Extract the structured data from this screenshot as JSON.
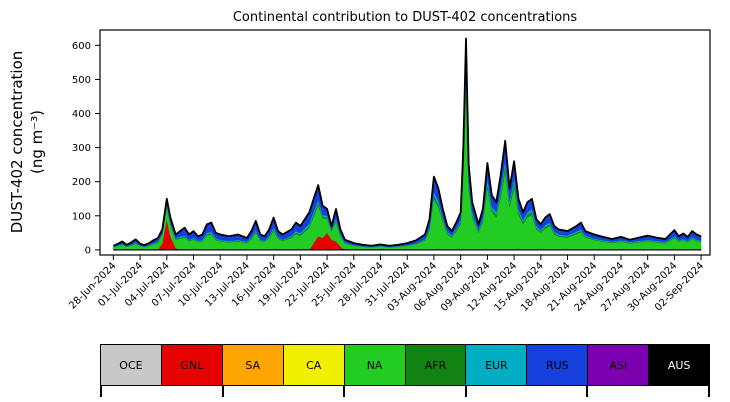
{
  "labels": {
    "ylabel_line1": "DUST-402 concentration",
    "ylabel_line2": "(ng m⁻³)"
  },
  "chart_data": {
    "type": "area",
    "stacked": true,
    "title": "Continental contribution to DUST-402 concentrations",
    "xlabel": "",
    "ylabel": "DUST-402 concentration (ng m⁻³)",
    "legend_position": "bottom-table",
    "grid": false,
    "xlim": [
      -1.5,
      67
    ],
    "ylim": [
      -15,
      645
    ],
    "yticks": [
      0,
      100,
      200,
      300,
      400,
      500,
      600
    ],
    "x_unit": "days since 28-Jun-2024",
    "x_tick_positions": [
      0,
      3,
      6,
      9,
      12,
      15,
      18,
      21,
      24,
      27,
      30,
      33,
      36,
      39,
      42,
      45,
      48,
      51,
      54,
      57,
      60,
      63,
      66
    ],
    "x_tick_labels": [
      "28-Jun-2024",
      "01-Jul-2024",
      "04-Jul-2024",
      "07-Jul-2024",
      "10-Jul-2024",
      "13-Jul-2024",
      "16-Jul-2024",
      "19-Jul-2024",
      "22-Jul-2024",
      "25-Jul-2024",
      "28-Jul-2024",
      "31-Jul-2024",
      "03-Aug-2024",
      "06-Aug-2024",
      "09-Aug-2024",
      "12-Aug-2024",
      "15-Aug-2024",
      "18-Aug-2024",
      "21-Aug-2024",
      "24-Aug-2024",
      "27-Aug-2024",
      "30-Aug-2024",
      "02-Sep-2024"
    ],
    "x": [
      0,
      0.5,
      1,
      1.5,
      2,
      2.5,
      3,
      3.5,
      4,
      4.5,
      5,
      5.5,
      6,
      6.4,
      7,
      7.5,
      8,
      8.5,
      9,
      9.5,
      10,
      10.5,
      11,
      11.5,
      12,
      13,
      14,
      15,
      15.5,
      16,
      16.5,
      17,
      17.5,
      18,
      18.5,
      19,
      20,
      20.5,
      21,
      21.5,
      22,
      22.5,
      23,
      23.5,
      24,
      24.5,
      25,
      25.5,
      26,
      27,
      28,
      29,
      30,
      31,
      32,
      33,
      34,
      35,
      35.5,
      36,
      36.5,
      37,
      37.5,
      38,
      38.5,
      39,
      39.3,
      39.6,
      39.9,
      40.3,
      41,
      41.5,
      42,
      42.5,
      43,
      43.5,
      44,
      44.5,
      45,
      45.5,
      46,
      46.5,
      47,
      47.5,
      48,
      48.5,
      49,
      49.5,
      50,
      51,
      52,
      52.5,
      53,
      54,
      55,
      56,
      57,
      58,
      59,
      60,
      61,
      62,
      62.5,
      63,
      63.5,
      64,
      64.5,
      65,
      65.5,
      66
    ],
    "series": [
      {
        "name": "GNL",
        "color": "#e60000",
        "values": [
          0,
          0,
          0,
          0,
          0,
          0,
          0,
          0,
          0,
          0,
          0,
          20,
          90,
          40,
          5,
          0,
          0,
          0,
          0,
          0,
          0,
          0,
          0,
          0,
          0,
          0,
          0,
          0,
          0,
          0,
          0,
          0,
          0,
          0,
          0,
          0,
          0,
          0,
          0,
          0,
          0,
          20,
          40,
          35,
          50,
          30,
          25,
          10,
          0,
          0,
          0,
          0,
          0,
          0,
          0,
          0,
          0,
          0,
          0,
          0,
          0,
          0,
          0,
          0,
          0,
          0,
          0,
          0,
          0,
          0,
          0,
          0,
          0,
          0,
          0,
          0,
          0,
          0,
          0,
          0,
          0,
          0,
          0,
          0,
          0,
          0,
          0,
          0,
          0,
          0,
          0,
          0,
          0,
          0,
          0,
          0,
          0,
          0,
          0,
          0,
          0,
          0,
          0,
          0,
          0,
          0,
          0,
          0,
          0,
          0
        ]
      },
      {
        "name": "NA",
        "color": "#22cc22",
        "values": [
          7,
          11,
          15,
          9,
          13,
          18,
          11,
          8,
          12,
          17,
          21,
          24,
          36,
          33,
          24,
          33,
          36,
          25,
          30,
          22,
          25,
          42,
          45,
          28,
          25,
          22,
          25,
          20,
          31,
          50,
          26,
          23,
          35,
          56,
          32,
          26,
          35,
          47,
          41,
          53,
          65,
          78,
          90,
          57,
          42,
          24,
          57,
          30,
          18,
          12,
          9,
          7,
          10,
          7,
          9,
          12,
          17,
          27,
          58,
          150,
          125,
          82,
          46,
          36,
          54,
          75,
          215,
          470,
          178,
          96,
          50,
          82,
          182,
          110,
          96,
          155,
          230,
          125,
          185,
          103,
          75,
          96,
          103,
          60,
          50,
          63,
          70,
          46,
          39,
          36,
          46,
          52,
          36,
          29,
          24,
          20,
          24,
          19,
          22,
          26,
          22,
          19,
          27,
          34,
          24,
          28,
          22,
          32,
          26,
          23
        ]
      },
      {
        "name": "AFR",
        "color": "#128212",
        "values": [
          1,
          1,
          1,
          1,
          1,
          2,
          1,
          1,
          1,
          1,
          2,
          2,
          3,
          3,
          2,
          3,
          3,
          2,
          3,
          2,
          2,
          4,
          4,
          3,
          2,
          2,
          2,
          2,
          3,
          4,
          2,
          2,
          3,
          5,
          3,
          2,
          3,
          4,
          4,
          5,
          6,
          7,
          8,
          5,
          4,
          2,
          5,
          3,
          2,
          1,
          1,
          1,
          1,
          1,
          1,
          1,
          1,
          2,
          4,
          10,
          9,
          6,
          4,
          3,
          4,
          6,
          15,
          30,
          12,
          7,
          4,
          6,
          13,
          8,
          7,
          11,
          16,
          9,
          13,
          8,
          6,
          7,
          8,
          5,
          4,
          5,
          5,
          4,
          3,
          3,
          4,
          4,
          3,
          2,
          2,
          2,
          2,
          2,
          2,
          2,
          2,
          2,
          2,
          3,
          2,
          2,
          2,
          3,
          2,
          2
        ]
      },
      {
        "name": "EUR",
        "color": "#00aec4",
        "values": [
          1,
          1,
          1,
          1,
          1,
          2,
          1,
          1,
          1,
          1,
          2,
          2,
          3,
          3,
          2,
          3,
          3,
          2,
          3,
          2,
          2,
          4,
          4,
          3,
          2,
          2,
          2,
          2,
          3,
          4,
          2,
          2,
          3,
          5,
          3,
          2,
          3,
          4,
          4,
          5,
          6,
          7,
          8,
          5,
          4,
          2,
          5,
          3,
          2,
          1,
          1,
          1,
          1,
          1,
          1,
          1,
          1,
          2,
          4,
          10,
          9,
          6,
          4,
          3,
          4,
          6,
          15,
          30,
          12,
          7,
          4,
          6,
          13,
          8,
          7,
          11,
          16,
          9,
          13,
          8,
          6,
          7,
          8,
          5,
          4,
          5,
          5,
          4,
          3,
          3,
          4,
          4,
          3,
          2,
          2,
          2,
          2,
          2,
          2,
          2,
          2,
          2,
          2,
          3,
          2,
          2,
          2,
          3,
          2,
          2
        ]
      },
      {
        "name": "RUS",
        "color": "#1540dc",
        "values": [
          3,
          5,
          8,
          4,
          7,
          9,
          5,
          4,
          6,
          9,
          10,
          12,
          18,
          16,
          12,
          16,
          23,
          16,
          19,
          14,
          16,
          25,
          27,
          16,
          16,
          14,
          16,
          11,
          18,
          27,
          15,
          13,
          19,
          29,
          17,
          15,
          19,
          25,
          21,
          27,
          33,
          38,
          44,
          28,
          20,
          12,
          28,
          14,
          8,
          6,
          4,
          3,
          4,
          3,
          4,
          6,
          9,
          14,
          24,
          45,
          37,
          26,
          16,
          13,
          18,
          23,
          55,
          90,
          48,
          30,
          17,
          26,
          47,
          34,
          30,
          43,
          58,
          37,
          49,
          31,
          23,
          30,
          31,
          20,
          17,
          22,
          25,
          16,
          15,
          13,
          16,
          20,
          13,
          12,
          10,
          8,
          10,
          7,
          10,
          12,
          10,
          9,
          14,
          18,
          12,
          16,
          12,
          17,
          15,
          13
        ]
      }
    ],
    "series_with_no_visible_contribution": [
      "OCE",
      "SA",
      "CA",
      "ASI",
      "AUS"
    ],
    "total_line_color": "#000000",
    "legend": [
      {
        "label": "OCE",
        "color": "#c8c8c8",
        "text": "#000000"
      },
      {
        "label": "GNL",
        "color": "#e60000",
        "text": "#000000"
      },
      {
        "label": "SA",
        "color": "#ffa500",
        "text": "#000000"
      },
      {
        "label": "CA",
        "color": "#f0f000",
        "text": "#000000"
      },
      {
        "label": "NA",
        "color": "#22cc22",
        "text": "#000000"
      },
      {
        "label": "AFR",
        "color": "#128212",
        "text": "#000000"
      },
      {
        "label": "EUR",
        "color": "#00aec4",
        "text": "#000000"
      },
      {
        "label": "RUS",
        "color": "#1540dc",
        "text": "#000000"
      },
      {
        "label": "ASI",
        "color": "#7d00b0",
        "text": "#000000"
      },
      {
        "label": "AUS",
        "color": "#000000",
        "text": "#ffffff"
      }
    ]
  }
}
